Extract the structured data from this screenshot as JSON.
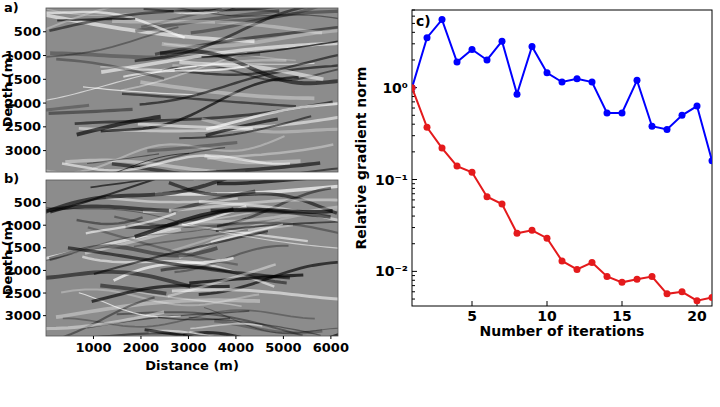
{
  "chart_data": [
    {
      "type": "image",
      "title": "a)",
      "ylabel": "Depth (m)",
      "xlim": [
        0,
        6150
      ],
      "ylim": [
        0,
        3450
      ],
      "yticks": [
        500,
        1000,
        1500,
        2000,
        2500,
        3000
      ],
      "tick_labels": "y"
    },
    {
      "type": "image",
      "title": "b)",
      "xlabel": "Distance (m)",
      "ylabel": "Depth (m)",
      "xlim": [
        0,
        6150
      ],
      "ylim": [
        0,
        3450
      ],
      "xticks": [
        1000,
        2000,
        3000,
        4000,
        5000,
        6000
      ],
      "yticks": [
        500,
        1000,
        1500,
        2000,
        2500,
        3000
      ]
    },
    {
      "type": "line",
      "title": "c)",
      "xlabel": "Number of iterations",
      "ylabel": "Relative gradient norm",
      "log": "y",
      "xlim": [
        1,
        21
      ],
      "ylim": [
        0.0042,
        7
      ],
      "xticks": [
        5,
        10,
        15,
        20
      ],
      "yticks": [
        {
          "value": 0.01,
          "label": "10⁻²"
        },
        {
          "value": 0.1,
          "label": "10⁻¹"
        },
        {
          "value": 1,
          "label": "10⁰"
        }
      ],
      "x": [
        1,
        2,
        3,
        4,
        5,
        6,
        7,
        8,
        9,
        10,
        11,
        12,
        13,
        14,
        15,
        16,
        17,
        18,
        19,
        20,
        21
      ],
      "series": [
        {
          "color": "#0000ff",
          "marker": "circle",
          "values": [
            1,
            3.5,
            5.5,
            1.9,
            2.6,
            2.0,
            3.2,
            0.85,
            2.8,
            1.45,
            1.15,
            1.25,
            1.15,
            0.53,
            0.53,
            1.2,
            0.38,
            0.35,
            0.5,
            0.63,
            0.16
          ]
        },
        {
          "color": "#e41a1c",
          "marker": "circle",
          "values": [
            1,
            0.37,
            0.22,
            0.14,
            0.12,
            0.065,
            0.054,
            0.026,
            0.028,
            0.023,
            0.013,
            0.0105,
            0.0125,
            0.0088,
            0.0076,
            0.0082,
            0.0088,
            0.0057,
            0.006,
            0.0048,
            0.0052
          ]
        }
      ]
    }
  ]
}
